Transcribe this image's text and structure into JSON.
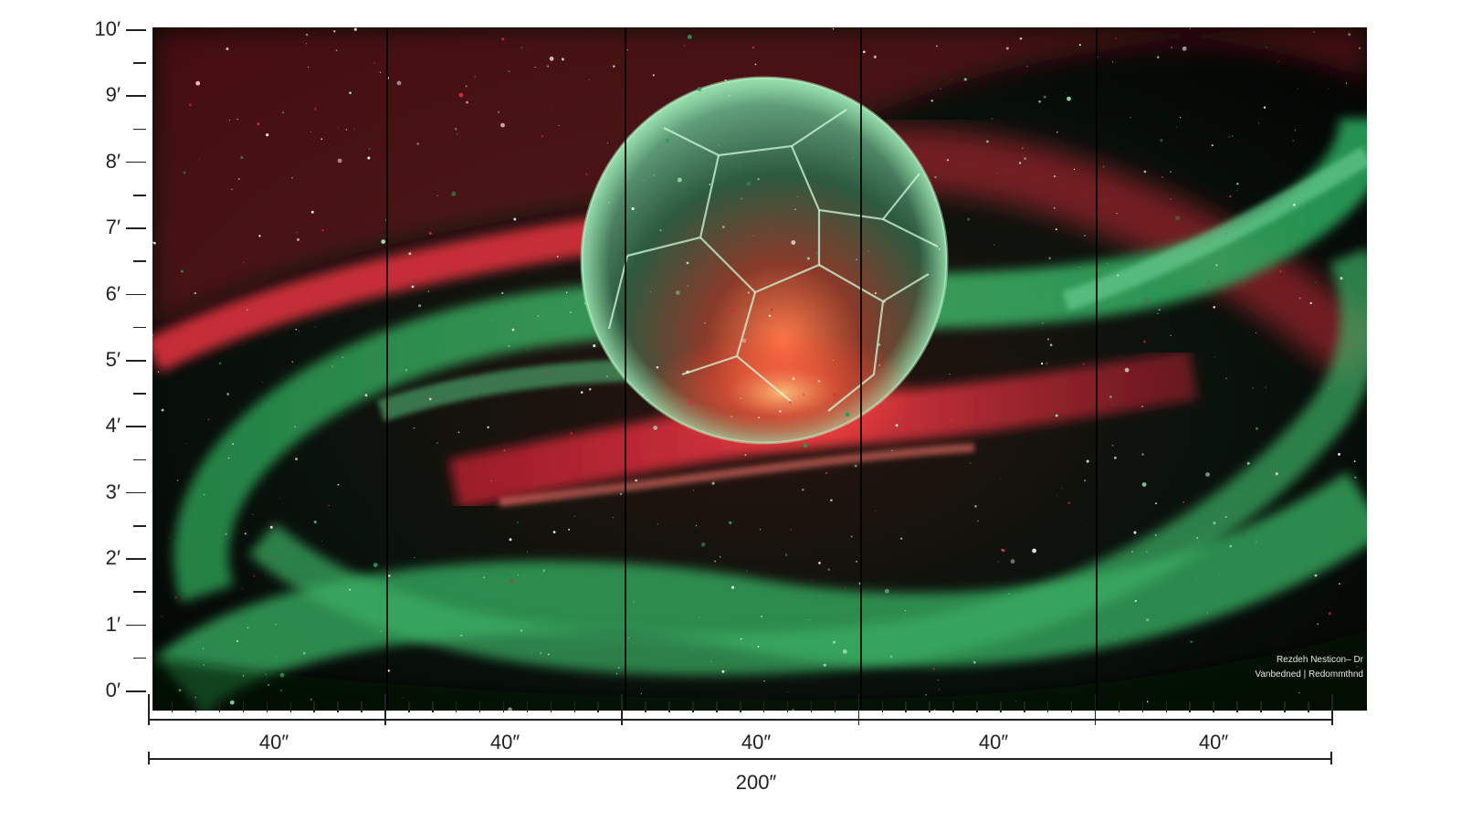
{
  "height_scale": {
    "labels": [
      "10′",
      "9′",
      "8′",
      "7′",
      "6′",
      "5′",
      "4′",
      "3′",
      "2′",
      "1′",
      "0′"
    ]
  },
  "panels": {
    "widths": [
      "40″",
      "40″",
      "40″",
      "40″",
      "40″"
    ],
    "total_width": "200″"
  },
  "artwork": {
    "subject": "cracked-sphere-in-green-red-galaxy",
    "colors": {
      "green": "#2f9a55",
      "red": "#d4283b",
      "deep_space": "#020302",
      "glow": "#ff8a5c"
    },
    "credit_lines": [
      "Rezdeh Nesticon– Dr",
      "Vanbedned | Redommthnd"
    ]
  }
}
